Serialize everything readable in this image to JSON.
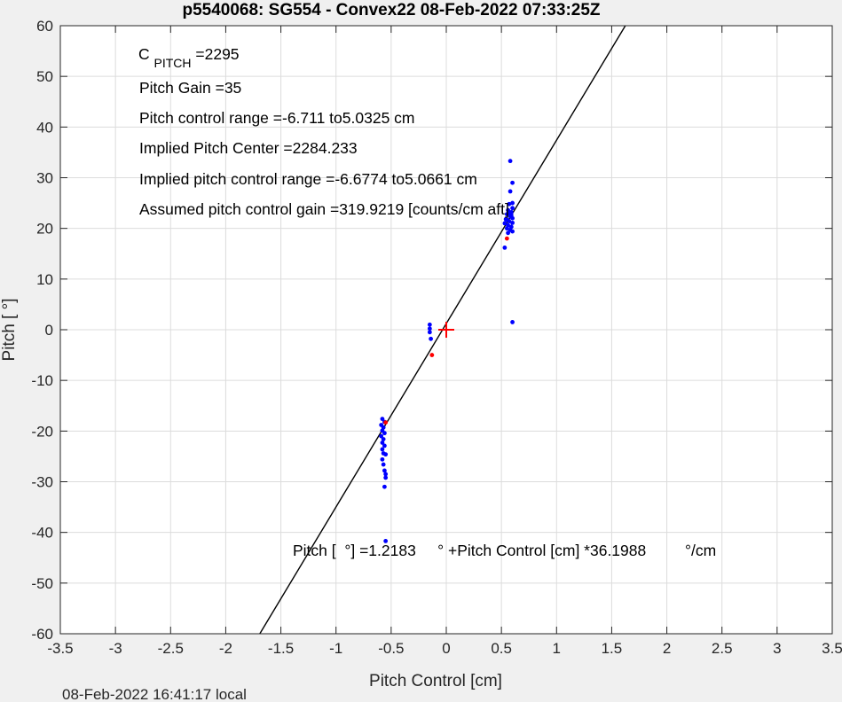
{
  "chart_data": {
    "type": "scatter",
    "title": "p5540068: SG554 - Convex22 08-Feb-2022 07:33:25Z",
    "xlabel": "Pitch Control [cm]",
    "ylabel": "Pitch [  °]",
    "xlim": [
      -3.5,
      3.5
    ],
    "ylim": [
      -60,
      60
    ],
    "xticks": [
      -3.5,
      -3,
      -2.5,
      -2,
      -1.5,
      -1,
      -0.5,
      0,
      0.5,
      1,
      1.5,
      2,
      2.5,
      3,
      3.5
    ],
    "xtick_labels": [
      "-3.5",
      "-3",
      "-2.5",
      "-2",
      "-1.5",
      "-1",
      "-0.5",
      "0",
      "0.5",
      "1",
      "1.5",
      "2",
      "2.5",
      "3",
      "3.5"
    ],
    "yticks": [
      -60,
      -50,
      -40,
      -30,
      -20,
      -10,
      0,
      10,
      20,
      30,
      40,
      50,
      60
    ],
    "ytick_labels": [
      "-60",
      "-50",
      "-40",
      "-30",
      "-20",
      "-10",
      "0",
      "10",
      "20",
      "30",
      "40",
      "50",
      "60"
    ],
    "grid": true,
    "fit_line": {
      "intercept": 1.2183,
      "slope": 36.1988,
      "color": "#000000"
    },
    "center_marker": {
      "x": 0,
      "y": 0,
      "color": "#ff0000",
      "shape": "plus"
    },
    "series": [
      {
        "color": "#0000ff",
        "points": [
          [
            0.58,
            33.3
          ],
          [
            0.6,
            29.0
          ],
          [
            0.58,
            27.3
          ],
          [
            0.6,
            25.0
          ],
          [
            0.57,
            24.8
          ],
          [
            0.6,
            24.0
          ],
          [
            0.56,
            23.6
          ],
          [
            0.59,
            23.2
          ],
          [
            0.55,
            22.8
          ],
          [
            0.58,
            22.4
          ],
          [
            0.6,
            22.0
          ],
          [
            0.54,
            21.8
          ],
          [
            0.57,
            21.4
          ],
          [
            0.6,
            21.1
          ],
          [
            0.53,
            21.0
          ],
          [
            0.56,
            20.6
          ],
          [
            0.59,
            20.3
          ],
          [
            0.55,
            20.0
          ],
          [
            0.58,
            19.7
          ],
          [
            0.6,
            19.4
          ],
          [
            0.56,
            19.1
          ],
          [
            0.57,
            23.0
          ],
          [
            0.55,
            21.7
          ],
          [
            0.59,
            22.6
          ],
          [
            0.53,
            16.2
          ],
          [
            0.6,
            1.5
          ],
          [
            -0.15,
            1.0
          ],
          [
            -0.15,
            0.2
          ],
          [
            -0.15,
            -0.5
          ],
          [
            -0.14,
            -1.8
          ],
          [
            -0.58,
            -17.6
          ],
          [
            -0.56,
            -18.2
          ],
          [
            -0.59,
            -18.8
          ],
          [
            -0.57,
            -19.3
          ],
          [
            -0.58,
            -19.9
          ],
          [
            -0.56,
            -20.4
          ],
          [
            -0.59,
            -21.0
          ],
          [
            -0.57,
            -21.6
          ],
          [
            -0.58,
            -22.3
          ],
          [
            -0.56,
            -22.9
          ],
          [
            -0.58,
            -23.6
          ],
          [
            -0.57,
            -24.4
          ],
          [
            -0.55,
            -24.6
          ],
          [
            -0.58,
            -25.6
          ],
          [
            -0.57,
            -26.6
          ],
          [
            -0.56,
            -27.8
          ],
          [
            -0.55,
            -28.5
          ],
          [
            -0.55,
            -29.2
          ],
          [
            -0.56,
            -31.0
          ],
          [
            -0.55,
            -41.7
          ]
        ]
      },
      {
        "color": "#ff0000",
        "points": [
          [
            0.55,
            18.0
          ],
          [
            -0.13,
            -5.0
          ],
          [
            -0.55,
            -18.3
          ]
        ]
      }
    ]
  },
  "annotations": {
    "c_pitch_base": "C",
    "c_pitch_sub": "PITCH",
    "c_pitch_value": " =2295",
    "pitch_gain": "Pitch Gain =35",
    "pitch_control_range": "Pitch control range =-6.711 to5.0325 cm",
    "implied_center": "Implied Pitch Center =2284.233",
    "implied_range": "Implied pitch control range =-6.6774 to5.0661 cm",
    "assumed_gain": "Assumed pitch control gain =319.9219 [counts/cm aft]",
    "fit_equation": "Pitch [  °] =1.2183     ° +Pitch Control [cm] *36.1988         °/cm"
  },
  "footer": {
    "local_time": "08-Feb-2022 16:41:17 local"
  }
}
